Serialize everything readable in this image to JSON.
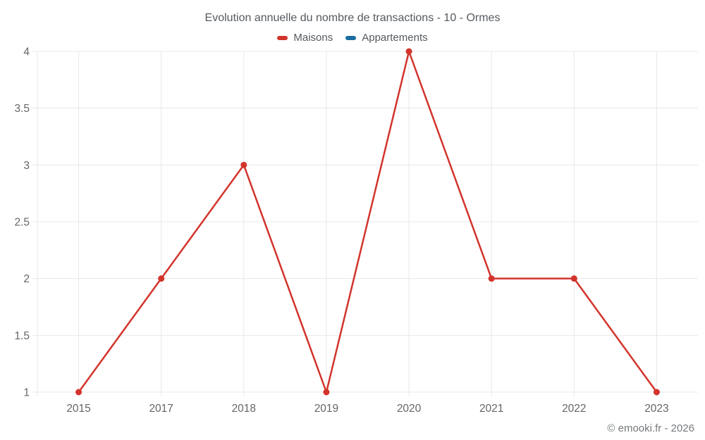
{
  "chart_data": {
    "type": "line",
    "title": "Evolution annuelle du nombre de transactions - 10 - Ormes",
    "categories": [
      "2015",
      "2017",
      "2018",
      "2019",
      "2020",
      "2021",
      "2022",
      "2023"
    ],
    "series": [
      {
        "name": "Maisons",
        "color": "#d2342c",
        "values": [
          1,
          2,
          3,
          1,
          4,
          2,
          2,
          1
        ]
      },
      {
        "name": "Appartements",
        "color": "#1a6d9e",
        "values": []
      }
    ],
    "xlabel": "",
    "ylabel": "",
    "ylim": [
      1,
      4
    ],
    "y_ticks": [
      1,
      1.5,
      2,
      2.5,
      3,
      3.5,
      4
    ],
    "grid": true,
    "legend_position": "top",
    "grid_color": "#e8e8e8",
    "axis_text_color": "#666666"
  },
  "footer": {
    "copyright": "© emooki.fr - 2026"
  }
}
